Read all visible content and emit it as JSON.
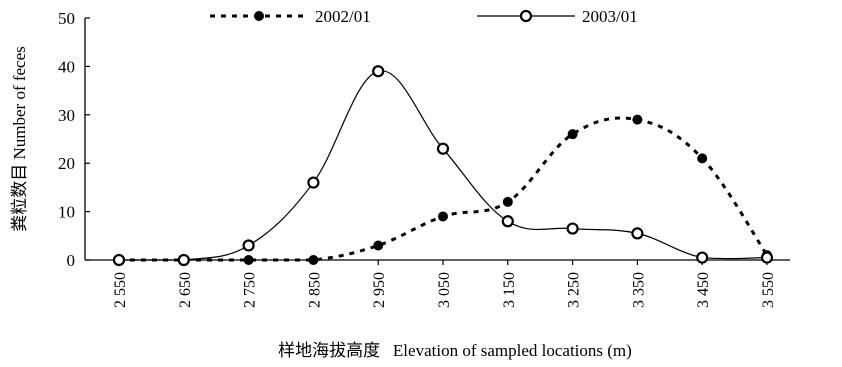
{
  "chart_data": {
    "type": "line",
    "title": "",
    "xlabel": "样地海拔高度   Elevation of sampled locations (m)",
    "ylabel": "粪粒数目  Number of feces",
    "categories": [
      "2 550",
      "2 650",
      "2 750",
      "2 850",
      "2 950",
      "3 050",
      "3 150",
      "3 250",
      "3 350",
      "3 450",
      "3 550"
    ],
    "x": [
      2550,
      2650,
      2750,
      2850,
      2950,
      3050,
      3150,
      3250,
      3350,
      3450,
      3550
    ],
    "ylim": [
      0,
      50
    ],
    "yticks": [
      0,
      10,
      20,
      30,
      40,
      50
    ],
    "grid": false,
    "legend_position": "top",
    "series": [
      {
        "name": "2002/01",
        "style": "dashed",
        "marker": "filled-circle",
        "color": "#000000",
        "values": [
          0,
          0,
          0,
          0,
          3,
          9,
          12,
          26,
          29,
          21,
          1
        ]
      },
      {
        "name": "2003/01",
        "style": "solid",
        "marker": "open-circle",
        "color": "#000000",
        "values": [
          0,
          0,
          3,
          16,
          39,
          23,
          8,
          6.5,
          5.5,
          0.5,
          0.5
        ]
      }
    ]
  }
}
